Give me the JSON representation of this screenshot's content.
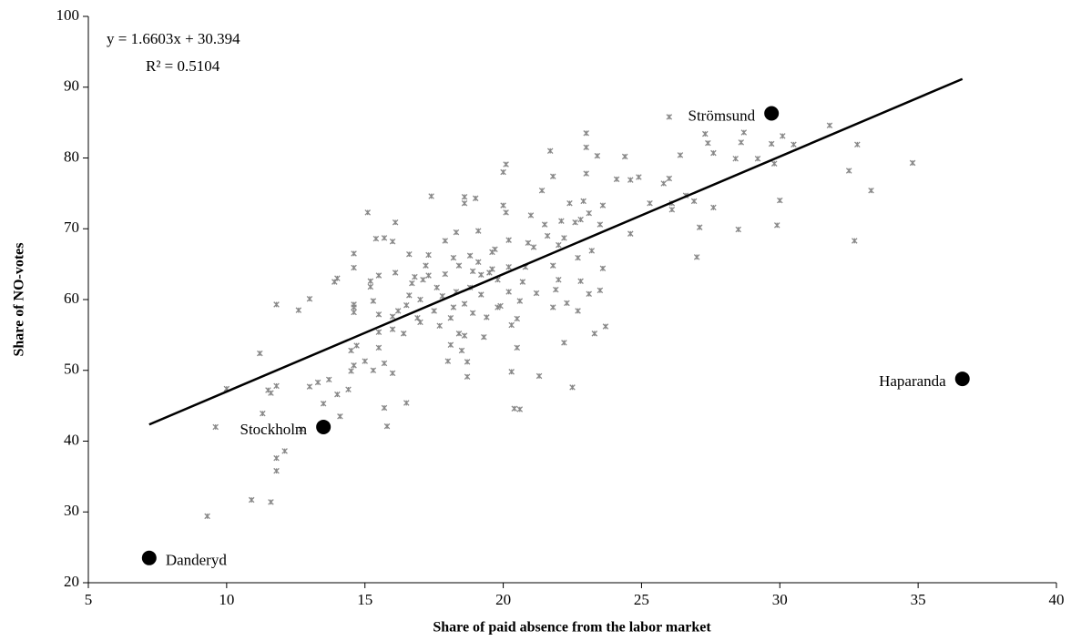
{
  "chart_data": {
    "type": "scatter",
    "x_label": "Share of paid absence from the labor market",
    "y_label": "Share of NO-votes",
    "equation": "y = 1.6603x + 30.394",
    "r_squared": "R² = 0.5104",
    "xlim": [
      5,
      40
    ],
    "xticks": [
      5,
      10,
      15,
      20,
      25,
      30,
      35,
      40
    ],
    "ylim": [
      20,
      100
    ],
    "yticks": [
      20,
      30,
      40,
      50,
      60,
      70,
      80,
      90,
      100
    ],
    "color": "#888888",
    "trendline": {
      "slope": 1.6603,
      "intercept": 30.394,
      "x_range": [
        7.2,
        36.6
      ],
      "color": "#000000"
    },
    "highlight_color": "#000000",
    "highlighted": [
      {
        "name": "Danderyd",
        "x": 7.2,
        "y": 23.5
      },
      {
        "name": "Stockholm",
        "x": 13.5,
        "y": 42.0
      },
      {
        "name": "Strömsund",
        "x": 29.7,
        "y": 86.3
      },
      {
        "name": "Haparanda",
        "x": 36.6,
        "y": 48.8
      }
    ],
    "x": [
      9.3,
      10.9,
      11.6,
      11.8,
      11.8,
      12.1,
      12.7,
      9.6,
      11.6,
      11.5,
      11.3,
      11.8,
      11.2,
      10.0,
      11.8,
      12.6,
      13.0,
      13.0,
      13.3,
      13.5,
      13.7,
      14.1,
      14.0,
      14.4,
      14.5,
      14.5,
      14.6,
      14.7,
      14.6,
      14.6,
      14.6,
      14.6,
      14.6,
      13.9,
      14.0,
      15.1,
      15.2,
      15.2,
      15.3,
      15.4,
      15.5,
      15.5,
      15.5,
      15.5,
      15.0,
      15.3,
      15.7,
      15.8,
      15.7,
      16.0,
      16.0,
      16.0,
      16.2,
      16.1,
      16.1,
      16.0,
      15.7,
      16.4,
      16.5,
      16.5,
      16.6,
      16.7,
      16.6,
      16.8,
      16.9,
      17.0,
      17.0,
      17.1,
      17.2,
      17.3,
      17.3,
      17.4,
      17.5,
      17.6,
      17.7,
      17.8,
      17.9,
      17.9,
      18.0,
      18.1,
      18.1,
      18.2,
      18.2,
      18.3,
      18.3,
      18.4,
      18.4,
      18.5,
      18.6,
      18.6,
      18.7,
      18.7,
      18.8,
      18.8,
      18.9,
      18.9,
      18.6,
      18.6,
      19.0,
      19.1,
      19.1,
      19.2,
      19.2,
      19.3,
      19.4,
      19.5,
      19.6,
      19.6,
      19.7,
      19.8,
      19.8,
      19.9,
      20.0,
      20.0,
      20.1,
      20.1,
      20.2,
      20.2,
      20.2,
      20.3,
      20.3,
      20.4,
      20.6,
      20.5,
      20.5,
      20.6,
      20.7,
      20.8,
      20.9,
      21.0,
      21.1,
      21.2,
      21.3,
      21.4,
      21.5,
      21.6,
      21.7,
      21.8,
      21.8,
      21.8,
      21.9,
      22.0,
      22.0,
      22.1,
      22.2,
      22.2,
      22.3,
      22.4,
      22.5,
      22.6,
      22.7,
      22.7,
      22.8,
      22.8,
      22.9,
      23.0,
      23.0,
      23.0,
      23.1,
      23.1,
      23.2,
      23.3,
      23.4,
      23.5,
      23.5,
      23.6,
      23.6,
      23.7,
      24.1,
      24.4,
      24.6,
      24.6,
      24.9,
      25.3,
      25.8,
      26.0,
      26.0,
      26.1,
      26.1,
      26.4,
      26.6,
      26.9,
      27.0,
      27.1,
      27.3,
      27.4,
      27.6,
      27.6,
      28.4,
      28.5,
      28.6,
      28.7,
      29.2,
      29.7,
      29.8,
      29.9,
      30.0,
      30.1,
      30.5,
      31.8,
      32.5,
      32.7,
      32.8,
      33.3,
      34.8
    ],
    "values": [
      29.4,
      31.7,
      31.4,
      35.8,
      37.6,
      38.6,
      41.7,
      42.0,
      46.8,
      47.2,
      43.9,
      47.8,
      52.4,
      47.4,
      59.3,
      58.5,
      60.1,
      47.7,
      48.3,
      45.3,
      48.7,
      43.5,
      46.6,
      47.3,
      49.9,
      52.8,
      50.7,
      53.5,
      58.2,
      58.9,
      59.3,
      64.5,
      66.5,
      62.5,
      63.0,
      72.3,
      62.6,
      61.8,
      59.8,
      68.6,
      63.4,
      57.9,
      55.4,
      53.2,
      51.3,
      50.0,
      51.0,
      42.1,
      44.7,
      49.6,
      55.8,
      57.6,
      58.4,
      63.8,
      70.9,
      68.2,
      68.7,
      55.2,
      59.2,
      45.4,
      60.6,
      62.3,
      66.4,
      63.2,
      57.4,
      56.8,
      60.0,
      62.8,
      64.8,
      63.4,
      66.3,
      74.6,
      58.4,
      61.7,
      56.3,
      60.5,
      68.3,
      63.6,
      51.3,
      53.6,
      57.4,
      58.9,
      65.9,
      69.5,
      61.1,
      64.8,
      55.2,
      52.8,
      54.9,
      59.4,
      49.1,
      51.2,
      61.7,
      66.2,
      58.1,
      64.0,
      73.6,
      74.5,
      74.3,
      69.7,
      65.3,
      63.5,
      60.7,
      54.7,
      57.5,
      63.8,
      64.3,
      66.7,
      67.1,
      62.8,
      58.9,
      59.1,
      78.0,
      73.3,
      79.1,
      72.3,
      68.4,
      64.6,
      61.1,
      56.4,
      49.8,
      44.6,
      44.5,
      53.2,
      57.3,
      59.8,
      62.5,
      64.6,
      68.0,
      71.9,
      67.4,
      60.9,
      49.2,
      75.4,
      70.6,
      69.0,
      81.0,
      77.4,
      64.8,
      58.9,
      61.4,
      62.8,
      67.7,
      71.1,
      68.7,
      53.9,
      59.5,
      73.6,
      47.6,
      70.9,
      58.4,
      65.9,
      62.6,
      71.3,
      73.9,
      83.5,
      81.5,
      77.8,
      72.2,
      60.8,
      66.9,
      55.2,
      80.3,
      61.3,
      70.6,
      64.4,
      73.3,
      56.2,
      77.0,
      80.2,
      69.3,
      76.9,
      77.3,
      73.6,
      76.4,
      77.1,
      85.8,
      73.6,
      72.7,
      80.4,
      74.7,
      73.9,
      66.0,
      70.2,
      83.4,
      82.1,
      80.7,
      73.0,
      79.9,
      69.9,
      82.2,
      83.6,
      79.9,
      82.0,
      79.2,
      70.5,
      74.0,
      83.1,
      81.9,
      84.6,
      78.2,
      68.3,
      81.9,
      75.4,
      79.3
    ]
  }
}
